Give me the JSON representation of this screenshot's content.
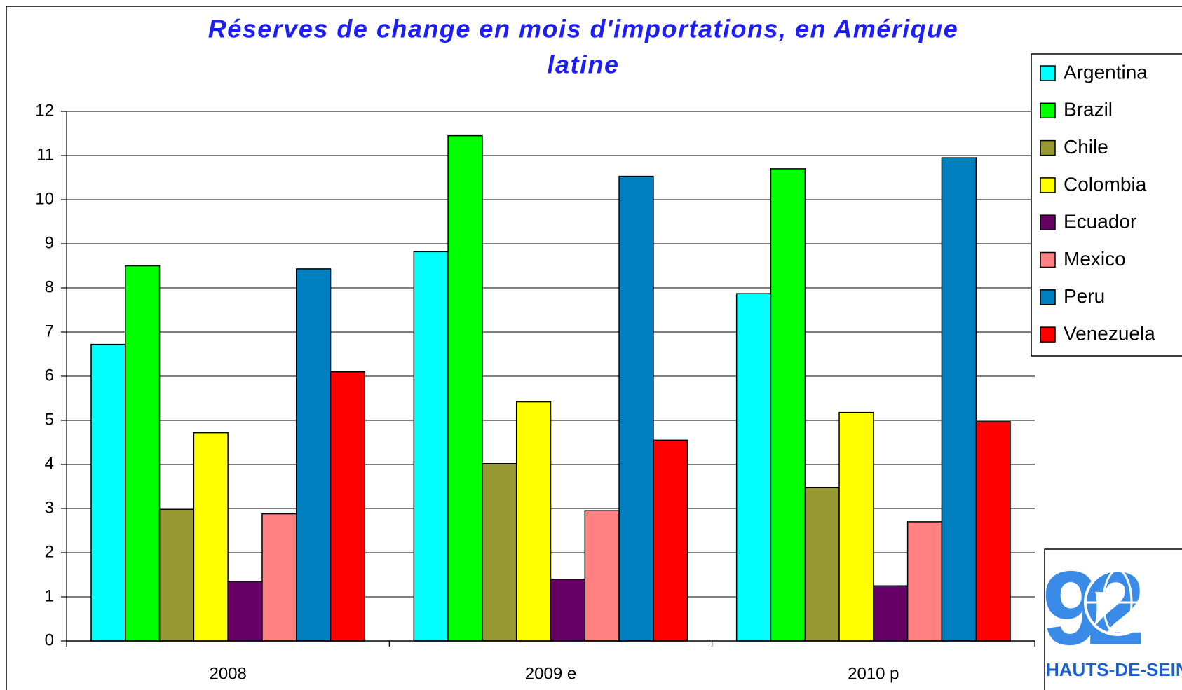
{
  "chart_data": {
    "type": "bar",
    "title": [
      "Réserves de change en mois d'importations, en Amérique",
      "latine"
    ],
    "categories": [
      "2008",
      "2009 e",
      "2010 p"
    ],
    "series": [
      {
        "name": "Argentina",
        "color": "#00ffff",
        "values": [
          6.72,
          8.82,
          7.87
        ]
      },
      {
        "name": "Brazil",
        "color": "#00ff00",
        "values": [
          8.5,
          11.45,
          10.7
        ]
      },
      {
        "name": "Chile",
        "color": "#999933",
        "values": [
          2.98,
          4.02,
          3.48
        ]
      },
      {
        "name": "Colombia",
        "color": "#ffff00",
        "values": [
          4.72,
          5.42,
          5.18
        ]
      },
      {
        "name": "Ecuador",
        "color": "#660066",
        "values": [
          1.35,
          1.4,
          1.25
        ]
      },
      {
        "name": "Mexico",
        "color": "#ff8080",
        "values": [
          2.88,
          2.95,
          2.7
        ]
      },
      {
        "name": "Peru",
        "color": "#0080c0",
        "values": [
          8.43,
          10.53,
          10.95
        ]
      },
      {
        "name": "Venezuela",
        "color": "#ff0000",
        "values": [
          6.1,
          4.55,
          4.97
        ]
      }
    ],
    "ylim": [
      0,
      12
    ],
    "yticks": [
      0,
      1,
      2,
      3,
      4,
      5,
      6,
      7,
      8,
      9,
      10,
      11,
      12
    ],
    "grid": true,
    "legend": "right",
    "logo_text": "HAUTS-DE-SEINE"
  }
}
